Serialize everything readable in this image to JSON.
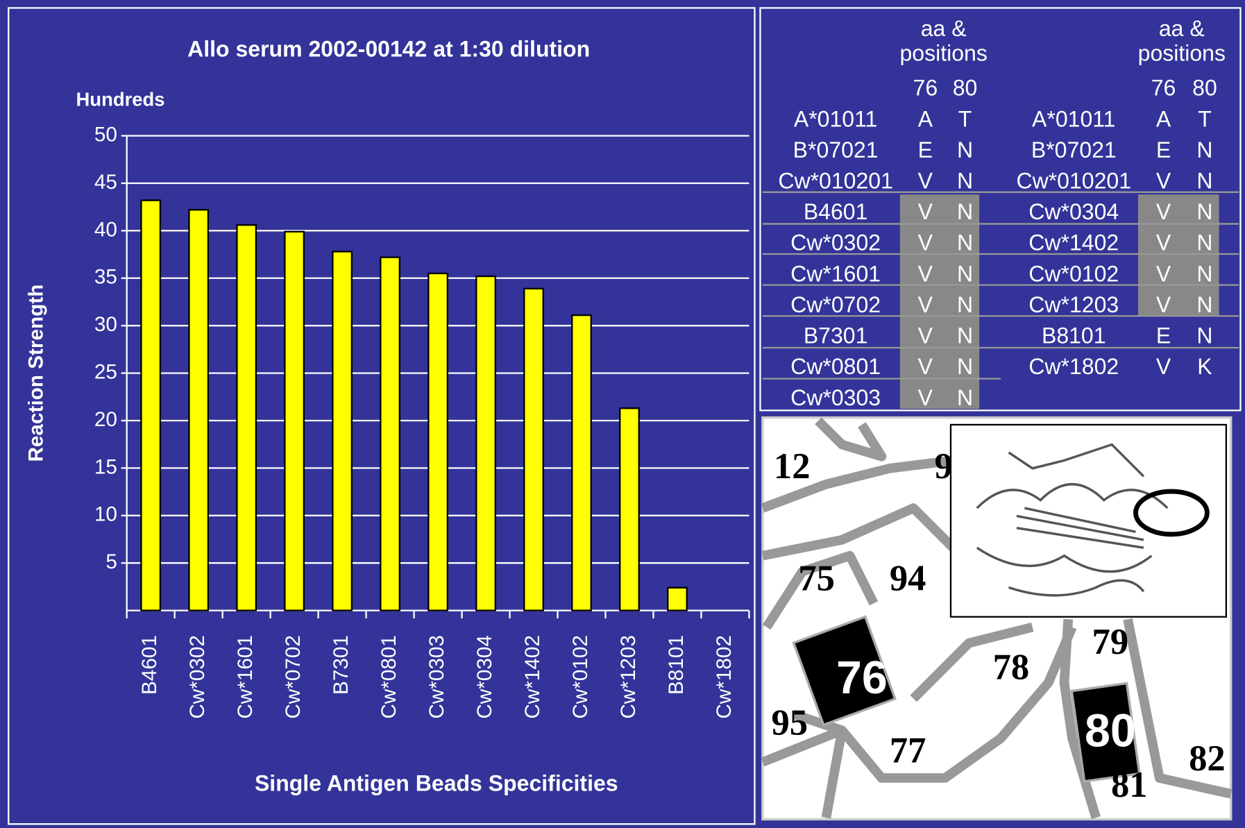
{
  "chart_data": {
    "type": "bar",
    "title": "Allo serum 2002-00142 at 1:30 dilution",
    "y_unit_note": "Hundreds",
    "y_label": "Reaction Strength",
    "x_label": "Single Antigen Beads Specificities",
    "categories": [
      "B4601",
      "Cw*0302",
      "Cw*1601",
      "Cw*0702",
      "B7301",
      "Cw*0801",
      "Cw*0303",
      "Cw*0304",
      "Cw*1402",
      "Cw*0102",
      "Cw*1203",
      "B8101",
      "Cw*1802"
    ],
    "values": [
      43.2,
      42.2,
      40.6,
      39.9,
      37.8,
      37.2,
      35.5,
      35.2,
      33.9,
      31.1,
      21.3,
      2.4,
      0
    ],
    "color": "#ffff00",
    "ylim": [
      0,
      50
    ],
    "yticks": [
      5,
      10,
      15,
      20,
      25,
      30,
      35,
      40,
      45,
      50
    ],
    "grid": true
  },
  "table": {
    "left": {
      "header": [
        "aa &",
        "positions"
      ],
      "positions": [
        "76",
        "80"
      ],
      "rows": [
        [
          "A*01011",
          "A",
          "T"
        ],
        [
          "B*07021",
          "E",
          "N"
        ],
        [
          "Cw*010201",
          "V",
          "N"
        ],
        [
          "B4601",
          "V",
          "N"
        ],
        [
          "Cw*0302",
          "V",
          "N"
        ],
        [
          "Cw*1601",
          "V",
          "N"
        ],
        [
          "Cw*0702",
          "V",
          "N"
        ],
        [
          "B7301",
          "V",
          "N"
        ],
        [
          "Cw*0801",
          "V",
          "N"
        ],
        [
          "Cw*0303",
          "V",
          "N"
        ]
      ]
    },
    "right": {
      "header": [
        "aa &",
        "positions"
      ],
      "positions": [
        "76",
        "80"
      ],
      "rows": [
        [
          "A*01011",
          "A",
          "T"
        ],
        [
          "B*07021",
          "E",
          "N"
        ],
        [
          "Cw*010201",
          "V",
          "N"
        ],
        [
          "Cw*0304",
          "V",
          "N"
        ],
        [
          "Cw*1402",
          "V",
          "N"
        ],
        [
          "Cw*0102",
          "V",
          "N"
        ],
        [
          "Cw*1203",
          "V",
          "N"
        ],
        [
          "B8101",
          "E",
          "N"
        ],
        [
          "Cw*1802",
          "V",
          "K"
        ]
      ]
    }
  },
  "diagram": {
    "labels": [
      "12",
      "9",
      "75",
      "94",
      "78",
      "79",
      "95",
      "77",
      "81",
      "82"
    ],
    "highlighted": [
      "76",
      "80"
    ]
  }
}
